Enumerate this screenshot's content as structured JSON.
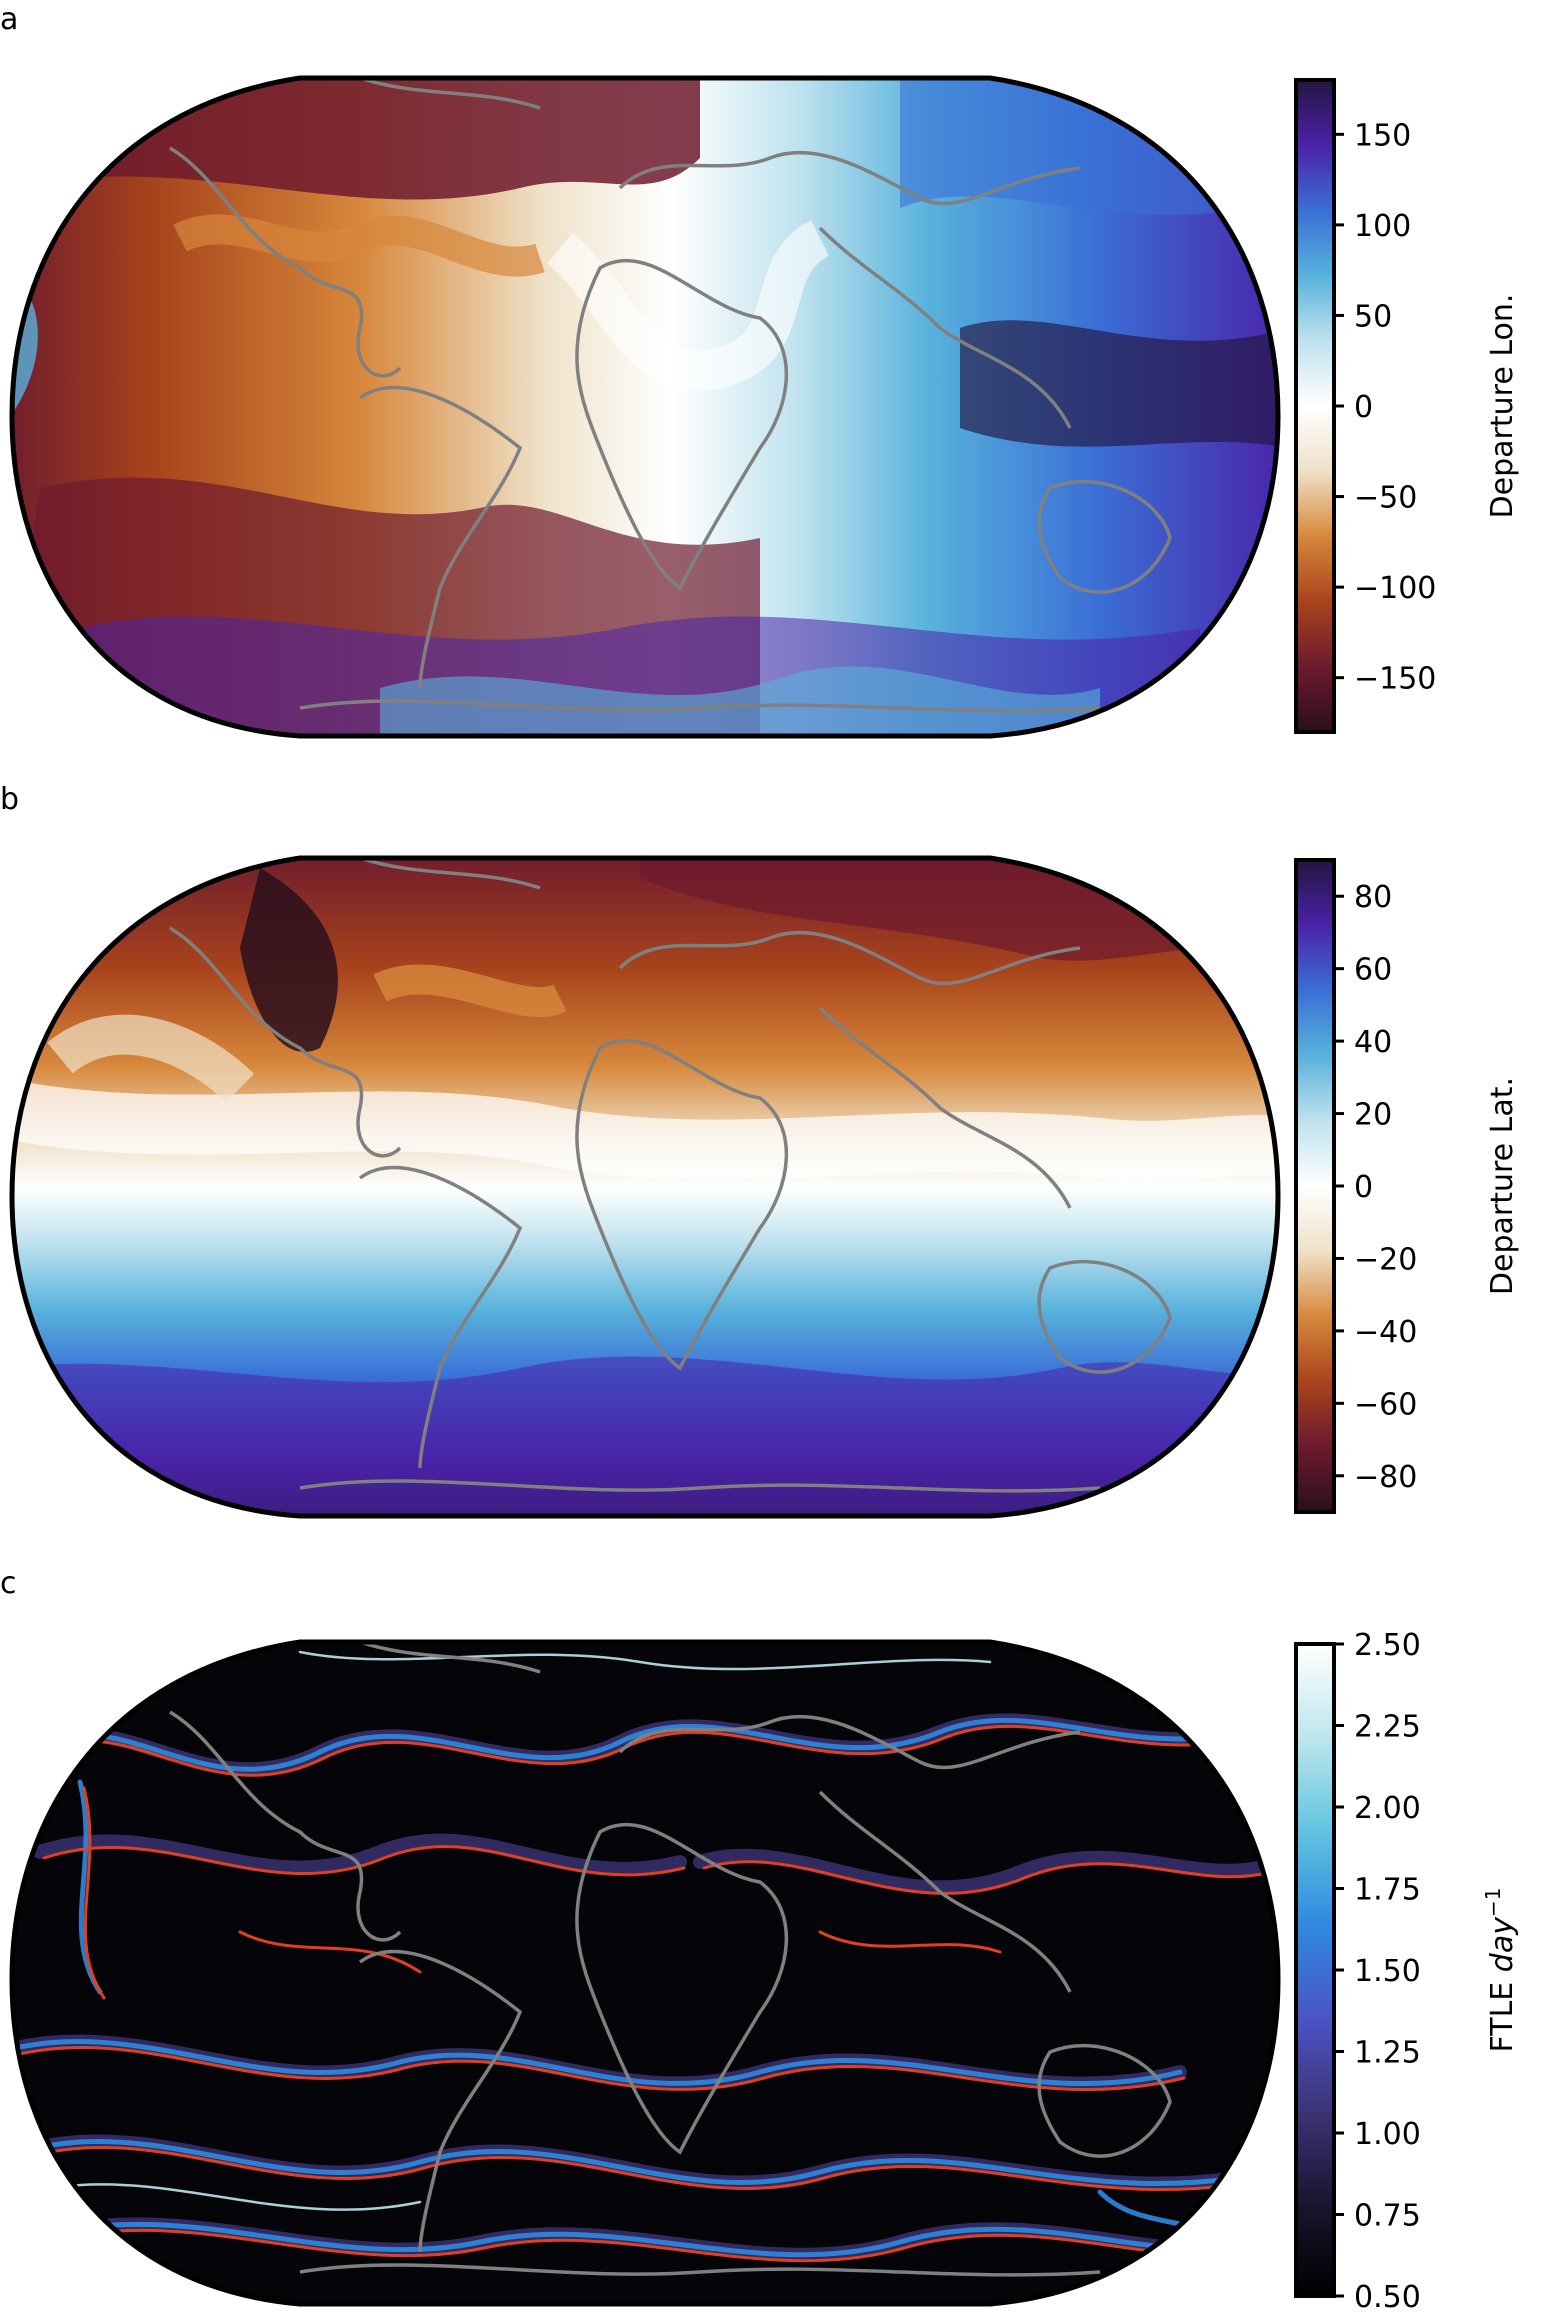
{
  "panels": [
    {
      "letter": "a",
      "colorbar": {
        "label": "Departure Lon.",
        "range": [
          -180,
          180
        ],
        "ticks": [
          "150",
          "100",
          "50",
          "0",
          "−50",
          "−100",
          "−150"
        ],
        "tick_values": [
          150,
          100,
          50,
          0,
          -50,
          -100,
          -150
        ],
        "colormap": [
          "#2a0f1c",
          "#6d1a2e",
          "#a8441c",
          "#d7883c",
          "#efe1c8",
          "#ffffff",
          "#bfe2ee",
          "#58b2dc",
          "#3a6fd6",
          "#4b22a8",
          "#241540"
        ]
      }
    },
    {
      "letter": "b",
      "colorbar": {
        "label": "Departure Lat.",
        "range": [
          -90,
          90
        ],
        "ticks": [
          "80",
          "60",
          "40",
          "20",
          "0",
          "−20",
          "−40",
          "−60",
          "−80"
        ],
        "tick_values": [
          80,
          60,
          40,
          20,
          0,
          -20,
          -40,
          -60,
          -80
        ],
        "colormap": [
          "#2a0f1c",
          "#6d1a2e",
          "#a8441c",
          "#d7883c",
          "#efe1c8",
          "#ffffff",
          "#bfe2ee",
          "#58b2dc",
          "#3a6fd6",
          "#4b22a8",
          "#241540"
        ]
      }
    },
    {
      "letter": "c",
      "colorbar": {
        "label": "FTLE",
        "label_unit": "day",
        "label_exp": "−1",
        "range": [
          0.5,
          2.5
        ],
        "ticks": [
          "2.50",
          "2.25",
          "2.00",
          "1.75",
          "1.50",
          "1.25",
          "1.00",
          "0.75",
          "0.50"
        ],
        "tick_values": [
          2.5,
          2.25,
          2.0,
          1.75,
          1.5,
          1.25,
          1.0,
          0.75,
          0.5
        ],
        "colormap": [
          "#000000",
          "#1a1530",
          "#3d3478",
          "#4a55c8",
          "#2f8ae0",
          "#62c4e0",
          "#bfe6ee",
          "#ffffff"
        ]
      }
    }
  ]
}
